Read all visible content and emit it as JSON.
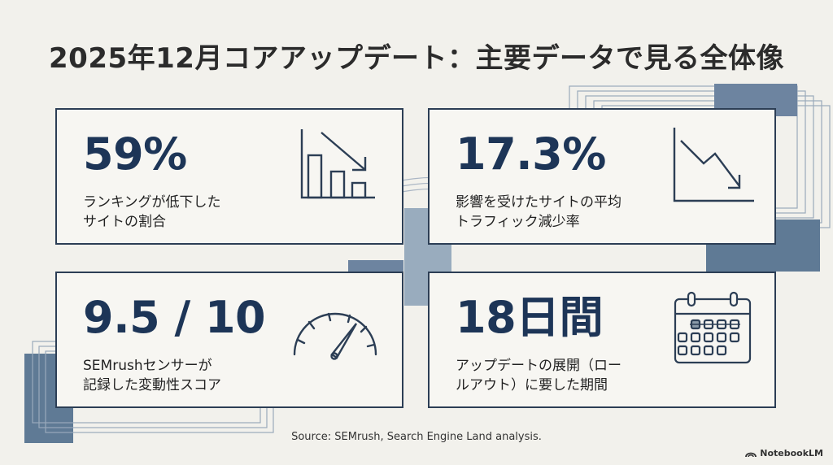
{
  "title": "2025年12月コアアップデート：主要データで見る全体像",
  "cards": [
    {
      "value": "59%",
      "label": "ランキングが低下した\nサイトの割合",
      "icon": "bar-chart-down-icon"
    },
    {
      "value": "17.3%",
      "label": "影響を受けたサイトの平均\nトラフィック減少率",
      "icon": "line-chart-down-icon"
    },
    {
      "value": "9.5 / 10",
      "label": "SEMrushセンサーが\n記録した変動性スコア",
      "icon": "speedometer-icon"
    },
    {
      "value": "18日間",
      "label": "アップデートの展開（ロー\nルアウト）に要した期間",
      "icon": "calendar-icon"
    }
  ],
  "source": "Source: SEMrush, Search Engine Land analysis.",
  "brand": "NotebookLM",
  "colors": {
    "accent": "#1d3557",
    "border": "#2c3e55",
    "deco": "#5f7a95",
    "background": "#f2f1ec"
  }
}
